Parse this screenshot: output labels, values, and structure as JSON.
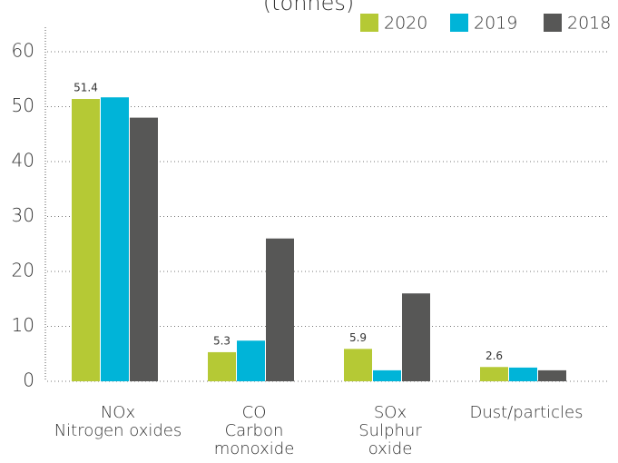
{
  "chart_data": {
    "type": "bar",
    "title": "(tonnes)",
    "categories": [
      [
        "NOx",
        "Nitrogen oxides"
      ],
      [
        "CO",
        "Carbon",
        "monoxide"
      ],
      [
        "SOx",
        "Sulphur",
        "oxide"
      ],
      [
        "Dust/particles"
      ]
    ],
    "series": [
      {
        "name": "2020",
        "color": "#b5c935",
        "values": [
          51.4,
          5.3,
          5.9,
          2.6
        ],
        "value_labels": [
          "51.4",
          "5.3",
          "5.9",
          "2.6"
        ]
      },
      {
        "name": "2019",
        "color": "#00b4d8",
        "values": [
          51.7,
          7.4,
          2.0,
          2.5
        ]
      },
      {
        "name": "2018",
        "color": "#575756",
        "values": [
          48,
          26,
          16,
          2.0
        ]
      }
    ],
    "ylim": [
      0,
      60
    ],
    "yticks": [
      0,
      10,
      20,
      30,
      40,
      50,
      60
    ],
    "grid": true,
    "legend": "top-right"
  }
}
